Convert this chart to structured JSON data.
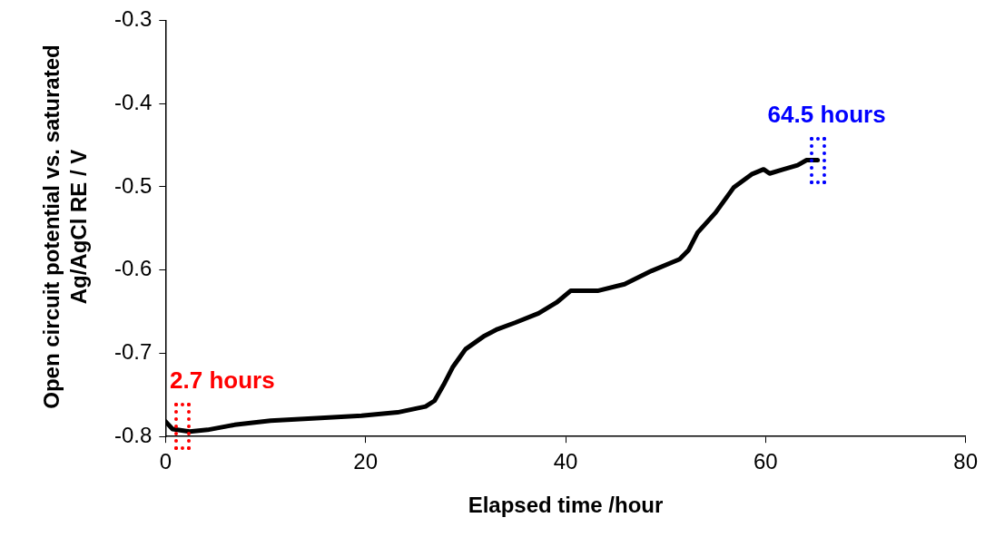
{
  "chart_data": {
    "type": "line",
    "xlabel": "Elapsed time  /hour",
    "ylabel": "Open circuit potential vs. saturated Ag/AgCl RE / V",
    "x": [
      0,
      0.7,
      2.4,
      4.2,
      6.9,
      10.5,
      15.1,
      19.6,
      23.2,
      26,
      26.9,
      27.8,
      28.7,
      30,
      31.9,
      33.2,
      35,
      37.3,
      39.1,
      40.5,
      43.2,
      45.9,
      48.6,
      51.4,
      52.3,
      53.2,
      55,
      56.8,
      58.6,
      59.8,
      60.4,
      61.8,
      63.2,
      64.1,
      65.2
    ],
    "series": [
      {
        "color": "#000000",
        "values": [
          -0.782,
          -0.791,
          -0.794,
          -0.792,
          -0.786,
          -0.781,
          -0.778,
          -0.775,
          -0.771,
          -0.764,
          -0.757,
          -0.738,
          -0.717,
          -0.695,
          -0.679,
          -0.671,
          -0.663,
          -0.652,
          -0.639,
          -0.625,
          -0.625,
          -0.617,
          -0.601,
          -0.587,
          -0.576,
          -0.555,
          -0.531,
          -0.501,
          -0.485,
          -0.479,
          -0.484,
          -0.479,
          -0.474,
          -0.468,
          -0.468
        ]
      }
    ],
    "xlim": [
      0,
      80
    ],
    "xticks": [
      0,
      20,
      40,
      60,
      80
    ],
    "ylim": [
      -0.8,
      -0.3
    ],
    "yticks": [
      -0.8,
      -0.7,
      -0.6,
      -0.5,
      -0.4,
      -0.3
    ],
    "annotations": [
      {
        "text": "2.7 hours",
        "x": 1.7,
        "y": -0.788
      },
      {
        "text": "64.5 hours",
        "x": 65.2,
        "y": -0.468
      }
    ],
    "grid": false,
    "legend": false,
    "marker": "none",
    "line_style": "solid"
  }
}
